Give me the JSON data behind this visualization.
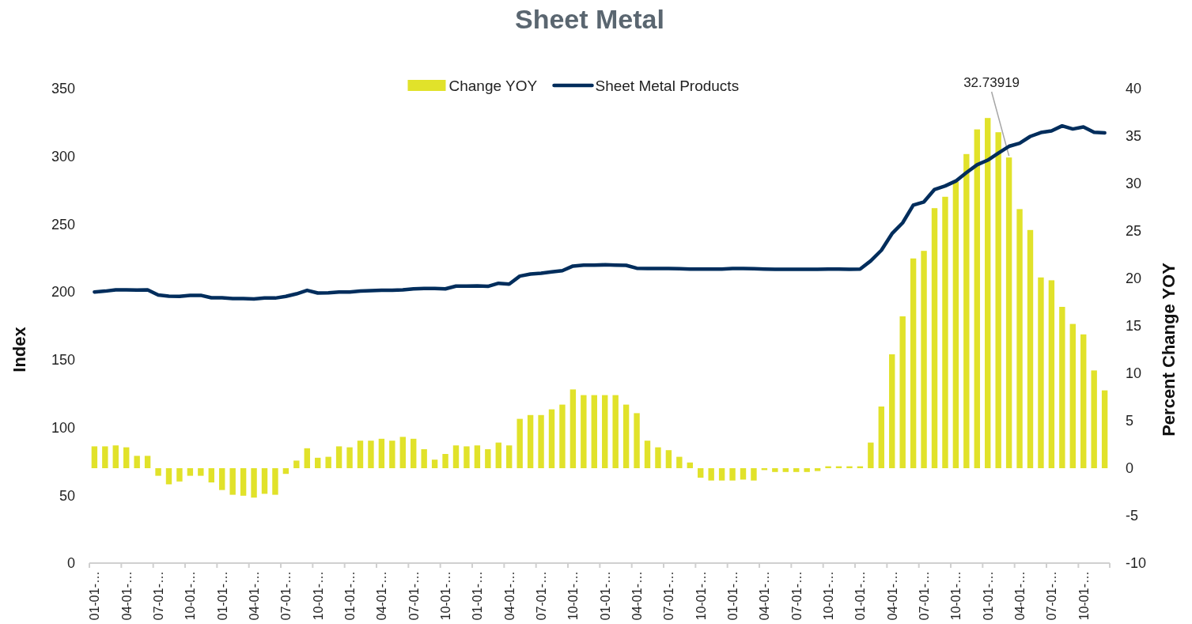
{
  "chart_data": {
    "type": "bar",
    "title": "Sheet Metal",
    "ylabel": "Index",
    "y2label": "Percent Change YOY",
    "categories": [
      "01-01-…",
      null,
      null,
      "04-01-…",
      null,
      null,
      "07-01-…",
      null,
      null,
      "10-01-…",
      null,
      null,
      "01-01-…",
      null,
      null,
      "04-01-…",
      null,
      null,
      "07-01-…",
      null,
      null,
      "10-01-…",
      null,
      null,
      "01-01-…",
      null,
      null,
      "04-01-…",
      null,
      null,
      "07-01-…",
      null,
      null,
      "10-01-…",
      null,
      null,
      "01-01-…",
      null,
      null,
      "04-01-…",
      null,
      null,
      "07-01-…",
      null,
      null,
      "10-01-…",
      null,
      null,
      "01-01-…",
      null,
      null,
      "04-01-…",
      null,
      null,
      "07-01-…",
      null,
      null,
      "10-01-…",
      null,
      null,
      "01-01-…",
      null,
      null,
      "04-01-…",
      null,
      null,
      "07-01-…",
      null,
      null,
      "10-01-…",
      null,
      null,
      "01-01-…",
      null,
      null,
      "04-01-…",
      null,
      null,
      "07-01-…",
      null,
      null,
      "10-01-…",
      null,
      null,
      "01-01-…",
      null,
      null,
      "04-01-…",
      null,
      null,
      "07-01-…",
      null,
      null,
      "10-01-…",
      null,
      null
    ],
    "series": [
      {
        "name": "Change YOY",
        "axis": "y2",
        "color": "#e1e22a",
        "values": [
          2.3,
          2.3,
          2.4,
          2.2,
          1.3,
          1.3,
          -0.8,
          -1.7,
          -1.4,
          -0.8,
          -0.8,
          -1.5,
          -2.3,
          -2.8,
          -2.9,
          -3.1,
          -2.7,
          -2.8,
          -0.6,
          0.8,
          2.1,
          1.1,
          1.2,
          2.3,
          2.2,
          2.9,
          2.9,
          3.1,
          2.9,
          3.3,
          3.1,
          2.0,
          0.9,
          1.5,
          2.4,
          2.3,
          2.4,
          2.0,
          2.7,
          2.4,
          5.2,
          5.6,
          5.6,
          6.2,
          6.7,
          8.3,
          7.7,
          7.7,
          7.7,
          7.7,
          6.7,
          5.8,
          2.9,
          2.2,
          1.9,
          1.2,
          0.6,
          -1.0,
          -1.3,
          -1.3,
          -1.3,
          -1.2,
          -1.3,
          -0.2,
          -0.4,
          -0.4,
          -0.4,
          -0.4,
          -0.3,
          0.2,
          0.2,
          0.2,
          0.2,
          2.7,
          6.5,
          12.0,
          16.0,
          22.1,
          22.9,
          27.4,
          28.6,
          30.2,
          33.1,
          35.7,
          36.9,
          35.4,
          32.73919,
          27.3,
          25.1,
          20.1,
          19.8,
          17.0,
          15.2,
          14.1,
          10.3,
          8.2
        ],
        "value_labels": [
          null,
          null,
          null,
          null,
          null,
          null,
          null,
          null,
          null,
          null,
          null,
          null,
          null,
          null,
          null,
          null,
          null,
          null,
          null,
          null,
          null,
          null,
          null,
          null,
          null,
          null,
          null,
          null,
          null,
          null,
          null,
          null,
          null,
          null,
          null,
          null,
          null,
          null,
          null,
          null,
          null,
          null,
          null,
          null,
          null,
          null,
          null,
          null,
          null,
          null,
          null,
          null,
          null,
          null,
          null,
          null,
          null,
          null,
          null,
          null,
          null,
          null,
          null,
          null,
          null,
          null,
          null,
          null,
          null,
          null,
          null,
          null,
          null,
          null,
          null,
          null,
          null,
          null,
          null,
          null,
          null,
          null,
          null,
          null,
          null,
          null,
          "32.73919",
          null,
          null,
          null,
          null,
          null,
          null,
          null,
          null,
          null
        ]
      },
      {
        "name": "Sheet Metal Products",
        "type": "line",
        "axis": "y",
        "color": "#002d5c",
        "values": [
          200,
          200.6,
          201.5,
          201.5,
          201.4,
          201.5,
          197.7,
          196.9,
          196.7,
          197.5,
          197.5,
          195.7,
          195.7,
          195.1,
          195.1,
          194.8,
          195.5,
          195.5,
          196.7,
          198.6,
          201.2,
          199.2,
          199.4,
          200,
          200,
          200.6,
          201,
          201.2,
          201.2,
          201.6,
          202.3,
          202.5,
          202.5,
          202.3,
          204.3,
          204.3,
          204.5,
          204.1,
          206.4,
          205.8,
          211.7,
          213.2,
          213.8,
          214.8,
          215.7,
          219.1,
          219.8,
          219.8,
          220,
          219.8,
          219.6,
          217.5,
          217.3,
          217.3,
          217.3,
          217.1,
          216.9,
          216.9,
          216.9,
          216.9,
          217.3,
          217.3,
          217.1,
          216.9,
          216.7,
          216.7,
          216.7,
          216.7,
          216.7,
          216.8,
          216.8,
          216.7,
          216.9,
          222.9,
          230.7,
          243,
          251,
          264,
          266.4,
          275.6,
          278.2,
          281.8,
          288,
          293.8,
          297.2,
          302.4,
          307.4,
          309.7,
          314.7,
          317.6,
          318.8,
          322.5,
          320.2,
          321.7,
          317.8,
          317.3
        ]
      }
    ],
    "ylim": [
      0,
      350
    ],
    "yticks": [
      0,
      50,
      100,
      150,
      200,
      250,
      300,
      350
    ],
    "y2lim": [
      -10,
      40
    ],
    "y2ticks": [
      -10,
      -5,
      0,
      5,
      10,
      15,
      20,
      25,
      30,
      35,
      40
    ],
    "grid": false,
    "legend": "top"
  }
}
